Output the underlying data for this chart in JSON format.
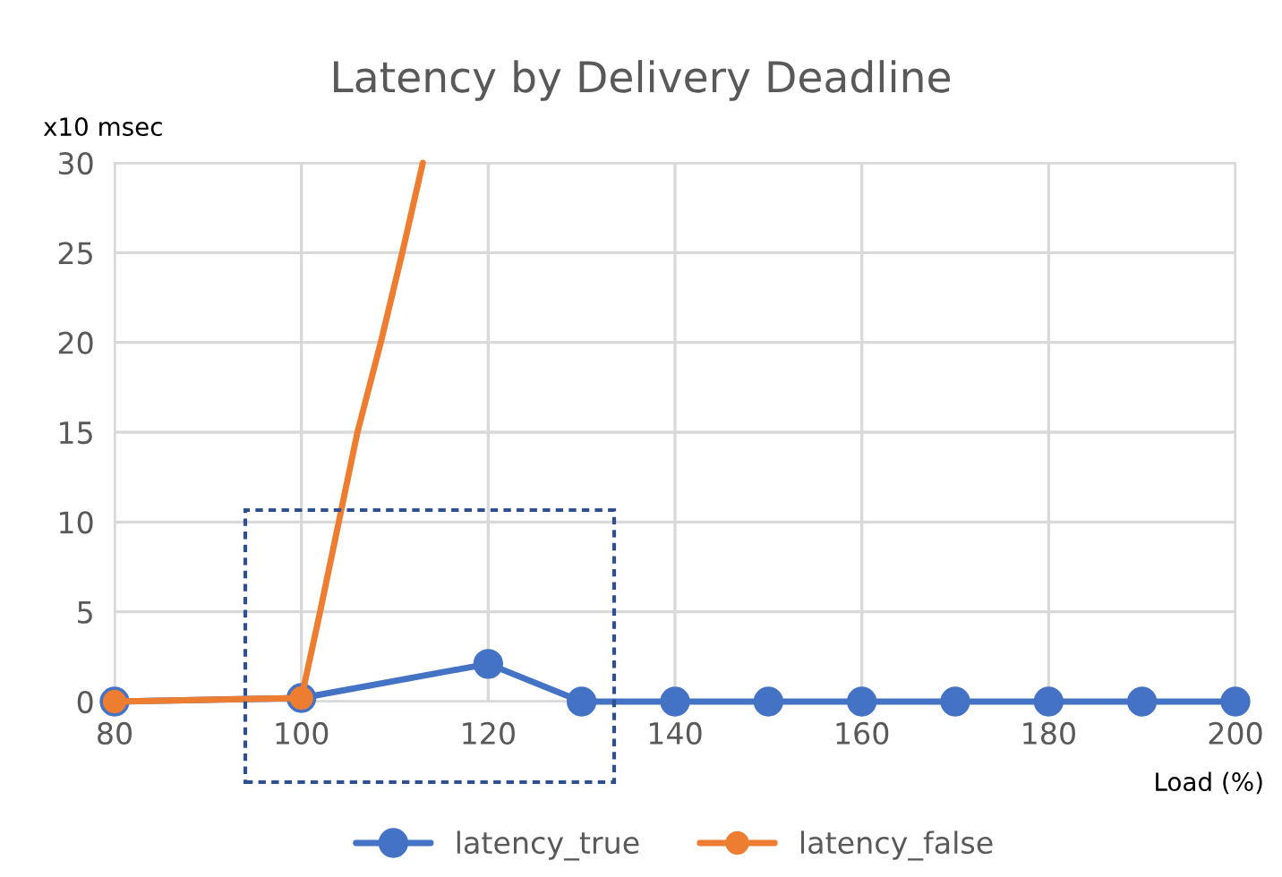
{
  "chart_data": {
    "type": "line",
    "title": "Latency by Delivery Deadline",
    "ylabel": "x10 msec",
    "xlabel": "Load (%)",
    "xlim": [
      80,
      200
    ],
    "xticks": [
      80,
      100,
      120,
      140,
      160,
      180,
      200
    ],
    "ylim": [
      0,
      30
    ],
    "yticks": [
      0,
      5,
      10,
      15,
      20,
      25,
      30
    ],
    "grid": true,
    "legend": "bottom",
    "marker": "circle",
    "line_style": "solid",
    "series": [
      {
        "name": "latency_true",
        "color": "#4472c4",
        "x": [
          80,
          100,
          120,
          130,
          140,
          150,
          160,
          170,
          180,
          190,
          200
        ],
        "values": [
          0,
          0.2,
          2.1,
          0,
          0,
          0,
          0,
          0,
          0,
          0,
          0
        ]
      },
      {
        "name": "latency_false",
        "color": "#ed7d31",
        "x": [
          80,
          100
        ],
        "values": [
          0,
          0.2
        ]
      },
      {
        "color": "#ed7d31",
        "marker": "none",
        "x": [
          100,
          102,
          104,
          106,
          108.5,
          110.8,
          113
        ],
        "values": [
          0.2,
          5,
          10,
          15,
          20,
          25,
          30
        ]
      }
    ]
  }
}
